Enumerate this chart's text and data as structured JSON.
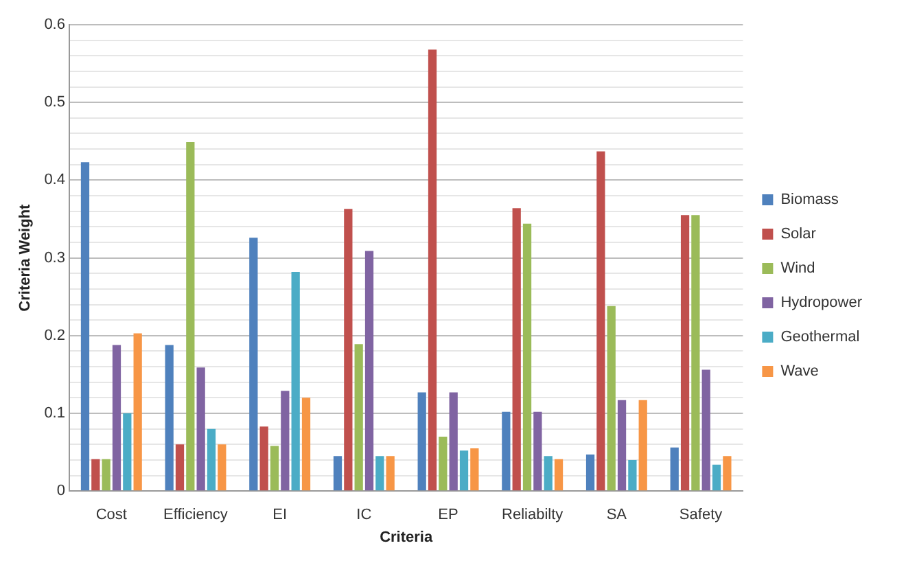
{
  "chart_data": {
    "type": "bar",
    "xlabel": "Criteria",
    "ylabel": "Criteria Weight",
    "categories": [
      "Cost",
      "Efficiency",
      "EI",
      "IC",
      "EP",
      "Reliabilty",
      "SA",
      "Safety"
    ],
    "series": [
      {
        "name": "Biomass",
        "color": "#4f81bd",
        "values": [
          0.423,
          0.188,
          0.326,
          0.045,
          0.127,
          0.102,
          0.047,
          0.056
        ]
      },
      {
        "name": "Solar",
        "color": "#c0504d",
        "values": [
          0.041,
          0.06,
          0.083,
          0.363,
          0.568,
          0.364,
          0.437,
          0.355
        ]
      },
      {
        "name": "Wind",
        "color": "#9bbb59",
        "values": [
          0.041,
          0.449,
          0.058,
          0.189,
          0.07,
          0.344,
          0.238,
          0.355
        ]
      },
      {
        "name": "Hydropower",
        "color": "#8064a2",
        "values": [
          0.188,
          0.159,
          0.129,
          0.309,
          0.127,
          0.102,
          0.117,
          0.156
        ]
      },
      {
        "name": "Geothermal",
        "color": "#4bacc6",
        "values": [
          0.1,
          0.08,
          0.282,
          0.045,
          0.052,
          0.045,
          0.04,
          0.034
        ]
      },
      {
        "name": "Wave",
        "color": "#f79646",
        "values": [
          0.203,
          0.06,
          0.12,
          0.045,
          0.055,
          0.041,
          0.117,
          0.045
        ]
      }
    ],
    "ylim": [
      0,
      0.6
    ],
    "yticks": [
      "0",
      {
        "value": 0.02,
        "label": null
      },
      {
        "value": 0.04,
        "label": null
      },
      {
        "value": 0.06,
        "label": null
      },
      {
        "value": 0.08,
        "label": null
      },
      0.1,
      {
        "value": 0.12,
        "label": null
      },
      {
        "value": 0.14,
        "label": null
      },
      {
        "value": 0.16,
        "label": null
      },
      {
        "value": 0.18,
        "label": null
      },
      0.2,
      {
        "value": 0.22,
        "label": null
      },
      {
        "value": 0.24,
        "label": null
      },
      {
        "value": 0.26,
        "label": null
      },
      {
        "value": 0.28,
        "label": null
      },
      0.3,
      {
        "value": 0.32,
        "label": null
      },
      {
        "value": 0.34,
        "label": null
      },
      {
        "value": 0.36,
        "label": null
      },
      {
        "value": 0.38,
        "label": null
      },
      0.4,
      {
        "value": 0.42,
        "label": null
      },
      {
        "value": 0.44,
        "label": null
      },
      {
        "value": 0.46,
        "label": null
      },
      {
        "value": 0.48,
        "label": null
      },
      0.5,
      {
        "value": 0.52,
        "label": null
      },
      {
        "value": 0.54,
        "label": null
      },
      {
        "value": 0.56,
        "label": null
      },
      {
        "value": 0.58,
        "label": null
      },
      0.6
    ],
    "grid": "y",
    "legend": "right"
  }
}
